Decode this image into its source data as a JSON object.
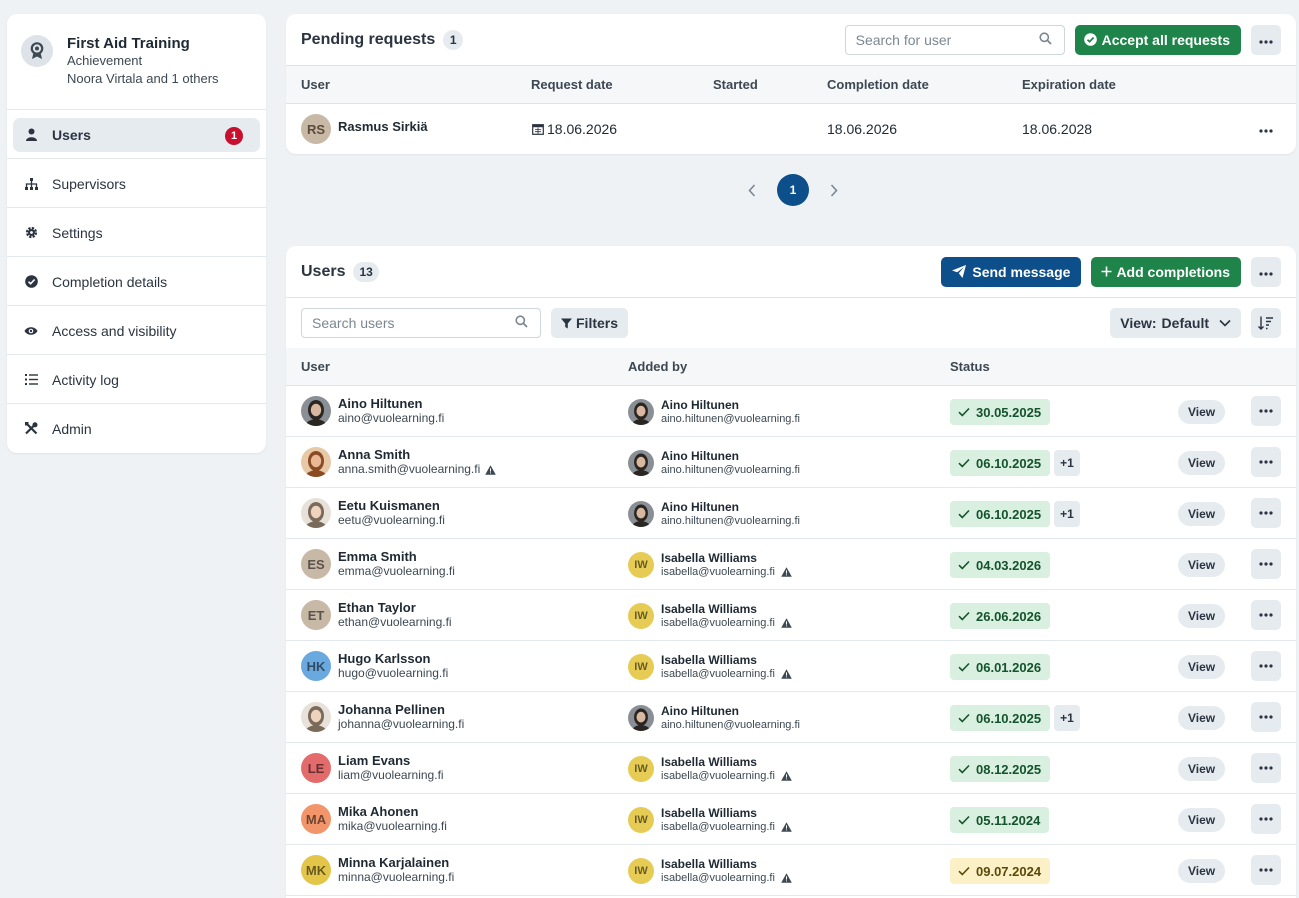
{
  "sidebar": {
    "title": "First Aid Training",
    "type": "Achievement",
    "owners": "Noora Virtala and 1 others",
    "items": [
      {
        "label": "Users",
        "icon": "user-icon",
        "badge": "1"
      },
      {
        "label": "Supervisors",
        "icon": "hierarchy-icon"
      },
      {
        "label": "Settings",
        "icon": "gear-icon"
      },
      {
        "label": "Completion details",
        "icon": "check-circle-icon"
      },
      {
        "label": "Access and visibility",
        "icon": "eye-icon"
      },
      {
        "label": "Activity log",
        "icon": "list-icon"
      },
      {
        "label": "Admin",
        "icon": "tools-icon"
      }
    ]
  },
  "pending": {
    "title": "Pending requests",
    "count": "1",
    "search_placeholder": "Search for user",
    "accept_all": "Accept all requests",
    "columns": [
      "User",
      "Request date",
      "Started",
      "Completion date",
      "Expiration date"
    ],
    "rows": [
      {
        "initials": "RS",
        "name": "Rasmus Sirkiä",
        "request_date": "18.06.2026",
        "started": "",
        "completion_date": "18.06.2026",
        "expiration_date": "18.06.2028"
      }
    ],
    "page": "1"
  },
  "users": {
    "title": "Users",
    "count": "13",
    "send_message": "Send message",
    "add_completions": "Add completions",
    "search_placeholder": "Search users",
    "filters": "Filters",
    "view_label": "View:",
    "view_value": "Default",
    "columns": [
      "User",
      "Added by",
      "Status"
    ],
    "view_button": "View",
    "rows": [
      {
        "initials": "AH",
        "photo": true,
        "name": "Aino Hiltunen",
        "email": "aino@vuolearning.fi",
        "warn": false,
        "added_by": "Aino Hiltunen",
        "added_email": "aino.hiltunen@vuolearning.fi",
        "added_initials": "AH",
        "added_warn": false,
        "status": "30.05.2025",
        "status_kind": "ok",
        "extra": ""
      },
      {
        "initials": "AS",
        "photo": true,
        "name": "Anna Smith",
        "email": "anna.smith@vuolearning.fi",
        "warn": true,
        "added_by": "Aino Hiltunen",
        "added_email": "aino.hiltunen@vuolearning.fi",
        "added_initials": "AH",
        "added_warn": false,
        "status": "06.10.2025",
        "status_kind": "ok",
        "extra": "+1"
      },
      {
        "initials": "EK",
        "photo": true,
        "name": "Eetu Kuismanen",
        "email": "eetu@vuolearning.fi",
        "warn": false,
        "added_by": "Aino Hiltunen",
        "added_email": "aino.hiltunen@vuolearning.fi",
        "added_initials": "AH",
        "added_warn": false,
        "status": "06.10.2025",
        "status_kind": "ok",
        "extra": "+1"
      },
      {
        "initials": "ES",
        "photo": false,
        "name": "Emma Smith",
        "email": "emma@vuolearning.fi",
        "warn": false,
        "added_by": "Isabella Williams",
        "added_email": "isabella@vuolearning.fi",
        "added_initials": "IW",
        "added_warn": true,
        "status": "04.03.2026",
        "status_kind": "ok",
        "extra": ""
      },
      {
        "initials": "ET",
        "photo": false,
        "name": "Ethan Taylor",
        "email": "ethan@vuolearning.fi",
        "warn": false,
        "added_by": "Isabella Williams",
        "added_email": "isabella@vuolearning.fi",
        "added_initials": "IW",
        "added_warn": true,
        "status": "26.06.2026",
        "status_kind": "ok",
        "extra": ""
      },
      {
        "initials": "HK",
        "photo": false,
        "name": "Hugo Karlsson",
        "email": "hugo@vuolearning.fi",
        "warn": false,
        "added_by": "Isabella Williams",
        "added_email": "isabella@vuolearning.fi",
        "added_initials": "IW",
        "added_warn": true,
        "status": "06.01.2026",
        "status_kind": "ok",
        "extra": ""
      },
      {
        "initials": "JP",
        "photo": true,
        "name": "Johanna Pellinen",
        "email": "johanna@vuolearning.fi",
        "warn": false,
        "added_by": "Aino Hiltunen",
        "added_email": "aino.hiltunen@vuolearning.fi",
        "added_initials": "AH",
        "added_warn": false,
        "status": "06.10.2025",
        "status_kind": "ok",
        "extra": "+1"
      },
      {
        "initials": "LE",
        "photo": false,
        "name": "Liam Evans",
        "email": "liam@vuolearning.fi",
        "warn": false,
        "added_by": "Isabella Williams",
        "added_email": "isabella@vuolearning.fi",
        "added_initials": "IW",
        "added_warn": true,
        "status": "08.12.2025",
        "status_kind": "ok",
        "extra": ""
      },
      {
        "initials": "MA",
        "photo": false,
        "name": "Mika Ahonen",
        "email": "mika@vuolearning.fi",
        "warn": false,
        "added_by": "Isabella Williams",
        "added_email": "isabella@vuolearning.fi",
        "added_initials": "IW",
        "added_warn": true,
        "status": "05.11.2024",
        "status_kind": "ok",
        "extra": ""
      },
      {
        "initials": "MK",
        "photo": false,
        "name": "Minna Karjalainen",
        "email": "minna@vuolearning.fi",
        "warn": false,
        "added_by": "Isabella Williams",
        "added_email": "isabella@vuolearning.fi",
        "added_initials": "IW",
        "added_warn": true,
        "status": "09.07.2024",
        "status_kind": "warn",
        "extra": ""
      }
    ]
  },
  "colors": {
    "green": "#1e8449",
    "blue": "#0c4f8a",
    "red": "#c8102e",
    "status_ok_bg": "#d9efdf",
    "status_warn_bg": "#fbf0c6",
    "av_ES": "#c8b8a6",
    "av_ET": "#c8b8a6",
    "av_HK": "#6aa9e0",
    "av_LE": "#e36b6b",
    "av_MA": "#f2956a",
    "av_MK": "#e3c54a",
    "av_IW": "#e6cc55",
    "av_RS": "#c8b8a6"
  }
}
